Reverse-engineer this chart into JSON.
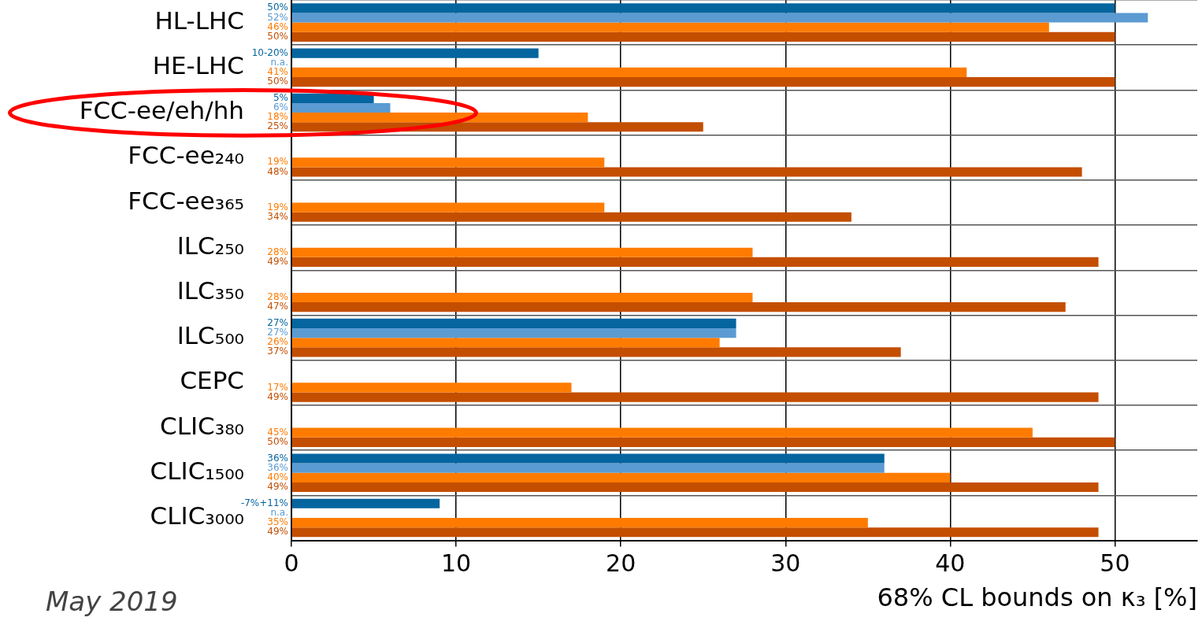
{
  "chart_data": {
    "type": "bar",
    "orientation": "horizontal",
    "categories": [
      "HL-LHC",
      "HE-LHC",
      "FCC-ee/eh/hh",
      "FCC-ee₂₄₀",
      "FCC-ee₃₆₅",
      "ILC₂₅₀",
      "ILC₃₅₀",
      "ILC₅₀₀",
      "CEPC",
      "CLIC₃₈₀",
      "CLIC₁₅₀₀",
      "CLIC₃₀₀₀"
    ],
    "series": [
      {
        "color": "#05659e",
        "values": [
          50,
          15,
          5,
          null,
          null,
          null,
          null,
          27,
          null,
          null,
          36,
          9
        ],
        "value_labels": [
          "50%",
          null,
          "5%",
          null,
          null,
          null,
          null,
          "27%",
          null,
          null,
          "36%",
          null
        ]
      },
      {
        "color": "#5b9bd2",
        "values": [
          52,
          null,
          6,
          null,
          null,
          null,
          null,
          27,
          null,
          null,
          36,
          null
        ],
        "value_labels": [
          "52%",
          "n.a.",
          "6%",
          null,
          null,
          null,
          null,
          "27%",
          null,
          null,
          "36%",
          "n.a."
        ]
      },
      {
        "color": "#ff7b00",
        "values": [
          46,
          41,
          18,
          19,
          19,
          28,
          28,
          26,
          17,
          45,
          40,
          35
        ],
        "value_labels": [
          "46%",
          "41%",
          "18%",
          "19%",
          "19%",
          "28%",
          "28%",
          "26%",
          "17%",
          "45%",
          "40%",
          "35%"
        ]
      },
      {
        "color": "#c44e00",
        "values": [
          50,
          50,
          25,
          48,
          34,
          49,
          47,
          37,
          49,
          50,
          49,
          49
        ],
        "value_labels": [
          "50%",
          "50%",
          "25%",
          "48%",
          "34%",
          "49%",
          "47%",
          "37%",
          "49%",
          "50%",
          "49%",
          "49%"
        ]
      }
    ],
    "xlim": [
      0,
      55
    ],
    "xticks": [
      0,
      10,
      20,
      30,
      40,
      50
    ],
    "xlabel": "68% CL bounds on κ₃ [%]",
    "grid": true,
    "annotations": [
      "May 2019",
      {
        "text": "10-20%",
        "x": 0,
        "y": "HE-LHC"
      },
      {
        "text": "-7%+11%",
        "x": 0,
        "y": "CLIC₃₀₀₀"
      }
    ]
  }
}
